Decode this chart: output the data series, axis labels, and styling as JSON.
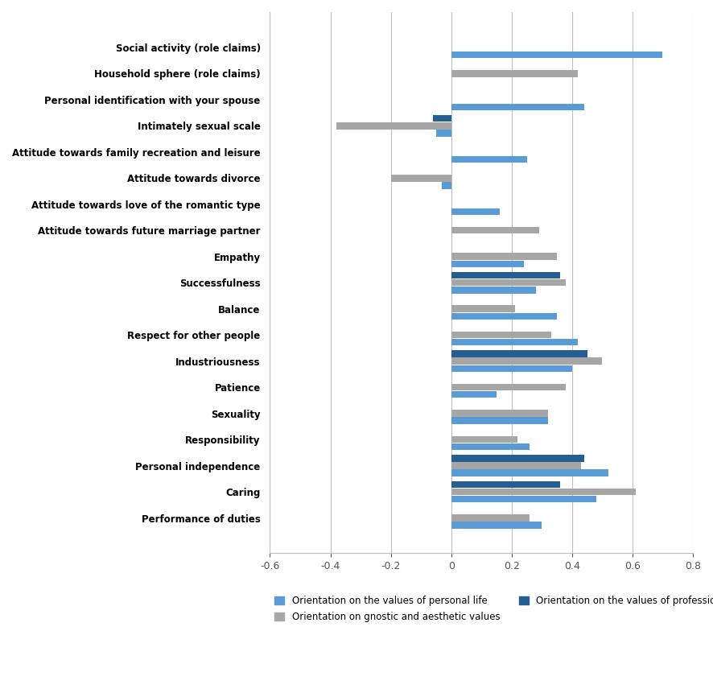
{
  "categories": [
    "Social activity (role claims)",
    "Household sphere (role claims)",
    "Personal identification with your spouse",
    "Intimately sexual scale",
    "Attitude towards family recreation and leisure",
    "Attitude towards divorce",
    "Attitude towards love of the romantic type",
    "Attitude towards future marriage partner",
    "Empathy",
    "Successfulness",
    "Balance",
    "Respect for other people",
    "Industriousness",
    "Patience",
    "Sexuality",
    "Responsibility",
    "Personal independence",
    "Caring",
    "Performance of duties"
  ],
  "series": {
    "personal_life": [
      0.7,
      0.0,
      0.44,
      -0.05,
      0.25,
      -0.03,
      0.16,
      0.0,
      0.24,
      0.28,
      0.35,
      0.42,
      0.4,
      0.15,
      0.32,
      0.26,
      0.52,
      0.48,
      0.3
    ],
    "gnostic": [
      0.0,
      0.42,
      0.0,
      -0.38,
      0.0,
      -0.2,
      0.0,
      0.29,
      0.35,
      0.38,
      0.21,
      0.33,
      0.5,
      0.38,
      0.32,
      0.22,
      0.43,
      0.61,
      0.26
    ],
    "professional": [
      0.0,
      0.0,
      0.0,
      -0.06,
      0.0,
      0.0,
      0.0,
      0.0,
      0.0,
      0.36,
      0.0,
      0.0,
      0.45,
      0.0,
      0.0,
      0.0,
      0.44,
      0.36,
      0.0
    ]
  },
  "colors": {
    "personal_life": "#5B9BD5",
    "gnostic": "#A6A6A6",
    "professional": "#255E91"
  },
  "legend_labels": {
    "personal_life": "Orientation on the values of personal life",
    "gnostic": "Orientation on gnostic and aesthetic values",
    "professional": "Orientation on the values of professional self-realization"
  },
  "xlim": [
    -0.6,
    0.8
  ],
  "xticks": [
    -0.6,
    -0.4,
    -0.2,
    0.0,
    0.2,
    0.4,
    0.6,
    0.8
  ],
  "bar_height": 0.28,
  "figsize": [
    8.86,
    8.66
  ],
  "dpi": 100,
  "grid_color": "#BFBFBF",
  "background_color": "#FFFFFF"
}
